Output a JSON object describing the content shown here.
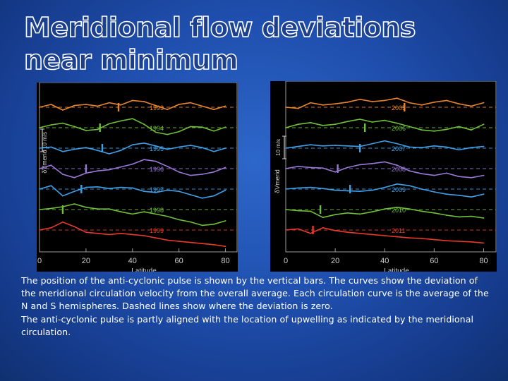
{
  "slide": {
    "title": "Meridional flow deviations near minimum",
    "caption": [
      "The position of the anti-cyclonic pulse is shown by the vertical bars.  The curves show the deviation of the meridional circulation velocity from the overall average.  Each circulation curve is the average of the N and S hemispheres.  Dashed lines show where the deviation is zero.",
      "The anti-cyclonic pulse is partly aligned with the location of upwelling as indicated by the meridional circulation."
    ]
  },
  "chart_data": [
    {
      "type": "line",
      "xlabel": "Latitude",
      "ylabel": "δVmerid",
      "scale_label": "10 m/s",
      "xlim": [
        0,
        85
      ],
      "x_ticks": [
        "0",
        "20",
        "40",
        "60",
        "80"
      ],
      "x": [
        0,
        5,
        10,
        15,
        20,
        25,
        30,
        35,
        40,
        45,
        50,
        55,
        60,
        65,
        70,
        75,
        80
      ],
      "series": [
        {
          "name": "1993",
          "color": "#e8862e",
          "pulse": 34,
          "values": [
            0,
            0.5,
            -0.5,
            0.3,
            0.5,
            0.2,
            0.8,
            0.4,
            1.2,
            1.0,
            0.3,
            -0.4,
            0.5,
            0.8,
            0.2,
            -0.4,
            0.2
          ]
        },
        {
          "name": "1994",
          "color": "#6fc03a",
          "pulse": 26,
          "values": [
            0,
            0.5,
            0.8,
            0.2,
            -0.5,
            -0.3,
            0.7,
            1.2,
            1.6,
            0.6,
            -0.8,
            -1.2,
            -0.7,
            0.2,
            0.1,
            -0.6,
            0.1
          ]
        },
        {
          "name": "1995",
          "color": "#3fa0e8",
          "pulse": 27,
          "values": [
            0,
            0.2,
            -0.6,
            -0.2,
            0.1,
            -0.4,
            -1.0,
            -0.4,
            0.6,
            0.9,
            0.4,
            -0.2,
            0.2,
            0.5,
            0.1,
            -0.6,
            0.0
          ]
        },
        {
          "name": "1996",
          "color": "#9a78d8",
          "pulse": 20,
          "values": [
            0,
            0.6,
            -1.0,
            -1.6,
            -0.8,
            -0.4,
            -0.2,
            0.3,
            0.8,
            1.6,
            1.3,
            0.4,
            -0.6,
            -1.2,
            -1.0,
            -0.6,
            0.2
          ]
        },
        {
          "name": "1997",
          "color": "#3fa0e8",
          "pulse": 18,
          "values": [
            0,
            0.6,
            -1.2,
            -0.4,
            0.3,
            0.4,
            0.1,
            0.3,
            0.2,
            -0.4,
            -0.6,
            -0.2,
            -0.4,
            -1.0,
            -1.6,
            -1.2,
            -0.2
          ]
        },
        {
          "name": "1998",
          "color": "#6fc03a",
          "pulse": 10,
          "values": [
            0,
            0.2,
            0.5,
            1.0,
            0.4,
            0.1,
            0.1,
            -0.4,
            -0.8,
            -0.4,
            -0.8,
            -1.2,
            -1.8,
            -2.2,
            -2.8,
            -2.6,
            -2.0
          ]
        },
        {
          "name": "1999",
          "color": "#e83a2a",
          "pulse": null,
          "values": [
            0,
            0.4,
            1.4,
            0.6,
            -0.4,
            -0.6,
            -0.8,
            -0.6,
            -0.8,
            -1.0,
            -1.4,
            -1.8,
            -2.0,
            -2.2,
            -2.4,
            -2.6,
            -2.9
          ]
        }
      ]
    },
    {
      "type": "line",
      "xlabel": "Latitude",
      "ylabel": "δVmerid",
      "scale_label": "10 m/s",
      "xlim": [
        0,
        85
      ],
      "x_ticks": [
        "0",
        "20",
        "40",
        "60",
        "80"
      ],
      "x": [
        0,
        5,
        10,
        15,
        20,
        25,
        30,
        35,
        40,
        45,
        50,
        55,
        60,
        65,
        70,
        75,
        80
      ],
      "series": [
        {
          "name": "2005",
          "color": "#e8862e",
          "pulse": 48,
          "values": [
            0,
            -0.2,
            0.8,
            0.4,
            0.6,
            0.9,
            1.4,
            1.0,
            1.2,
            1.6,
            0.8,
            0.4,
            0.9,
            1.2,
            0.6,
            0.2,
            0.8
          ]
        },
        {
          "name": "2006",
          "color": "#6fc03a",
          "pulse": 32,
          "values": [
            0,
            0.6,
            0.9,
            0.4,
            0.6,
            1.1,
            1.5,
            1.0,
            1.3,
            0.8,
            0.2,
            -0.4,
            -0.6,
            -0.3,
            0.2,
            -0.4,
            0.6
          ]
        },
        {
          "name": "2007",
          "color": "#3fa0e8",
          "pulse": 30,
          "values": [
            0,
            0.3,
            0.6,
            0.4,
            0.5,
            0.4,
            0.3,
            0.8,
            1.3,
            0.8,
            0.2,
            0.1,
            0.4,
            0.2,
            -0.3,
            0.1,
            0.3
          ]
        },
        {
          "name": "2008",
          "color": "#9a78d8",
          "pulse": 21,
          "values": [
            0,
            0.4,
            0.2,
            0.1,
            -0.6,
            0.2,
            0.7,
            0.9,
            1.2,
            0.6,
            -0.4,
            -0.9,
            -1.2,
            -0.8,
            -1.4,
            -1.6,
            -1.2
          ]
        },
        {
          "name": "2009",
          "color": "#3fa0e8",
          "pulse": 26,
          "values": [
            0,
            0.2,
            0.3,
            0.1,
            -0.2,
            -0.3,
            -0.4,
            -0.2,
            0.3,
            0.9,
            0.6,
            0.0,
            -0.5,
            -0.9,
            -1.1,
            -1.4,
            -0.9
          ]
        },
        {
          "name": "2010",
          "color": "#6fc03a",
          "pulse": 14,
          "values": [
            0,
            -0.2,
            -0.3,
            -1.4,
            -0.9,
            -0.6,
            -0.8,
            -0.4,
            0.1,
            0.4,
            0.1,
            -0.3,
            -0.6,
            -1.0,
            -1.3,
            -1.2,
            -1.5
          ]
        },
        {
          "name": "2011",
          "color": "#e83a2a",
          "pulse": 11,
          "values": [
            0,
            0.2,
            -0.6,
            0.4,
            -0.1,
            -0.4,
            -0.6,
            -0.8,
            -1.0,
            -1.2,
            -1.4,
            -1.5,
            -1.7,
            -1.9,
            -2.0,
            -2.1,
            -2.3
          ]
        }
      ]
    }
  ]
}
